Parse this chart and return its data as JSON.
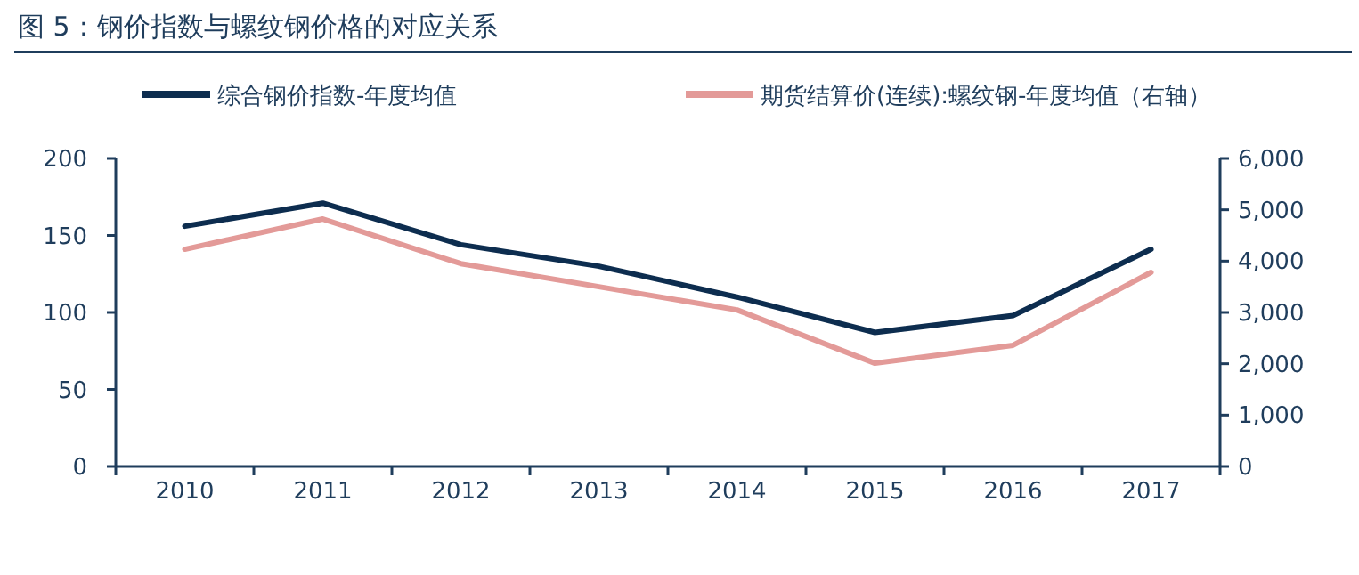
{
  "chart_data": {
    "type": "line",
    "title": "图 5：钢价指数与螺纹钢价格的对应关系",
    "categories": [
      "2010",
      "2011",
      "2012",
      "2013",
      "2014",
      "2015",
      "2016",
      "2017"
    ],
    "series": [
      {
        "name": "综合钢价指数-年度均值",
        "color": "#0d2d4f",
        "values": [
          156,
          171,
          144,
          130,
          110,
          87,
          98,
          141
        ]
      },
      {
        "name": "期货结算价(连续):螺纹钢-年度均值（右轴）",
        "color": "#e39a98",
        "axis": "y2",
        "values": [
          4230,
          4820,
          3950,
          3500,
          3050,
          2010,
          2360,
          3780
        ]
      }
    ],
    "ylim": [
      0,
      200
    ],
    "yticks": [
      0,
      50,
      100,
      150,
      200
    ],
    "y2lim": [
      0,
      6000
    ],
    "y2ticks": [
      {
        "value": 0,
        "label": "0"
      },
      {
        "value": 1000,
        "label": "1,000"
      },
      {
        "value": 2000,
        "label": "2,000"
      },
      {
        "value": 3000,
        "label": "3,000"
      },
      {
        "value": 4000,
        "label": "4,000"
      },
      {
        "value": 5000,
        "label": "5,000"
      },
      {
        "value": 6000,
        "label": "6,000"
      }
    ],
    "legend": "top",
    "grid": false,
    "marker": "none",
    "line_style": "solid"
  }
}
